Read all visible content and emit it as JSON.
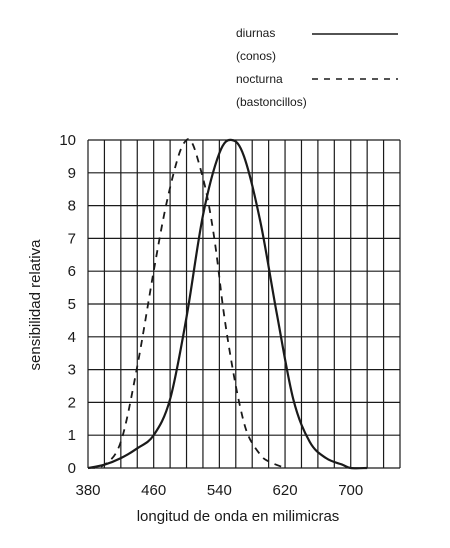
{
  "chart_data": {
    "type": "line",
    "title": "",
    "xlabel": "longitud de onda en milimicras",
    "ylabel": "sensibilidad relativa",
    "xlim": [
      380,
      760
    ],
    "ylim": [
      0,
      10
    ],
    "x_ticks": [
      380,
      460,
      540,
      620,
      700
    ],
    "y_ticks": [
      0,
      1,
      2,
      3,
      4,
      5,
      6,
      7,
      8,
      9,
      10
    ],
    "grid": true,
    "legend_position": "top-right",
    "legend": [
      {
        "line1": "diurnas",
        "line2": "(conos)",
        "style": "solid"
      },
      {
        "line1": "nocturna",
        "line2": "(bastoncillos)",
        "style": "dashed"
      }
    ],
    "series": [
      {
        "name": "diurnas (conos)",
        "style": "solid",
        "x": [
          380,
          400,
          420,
          440,
          460,
          480,
          500,
          520,
          540,
          555,
          570,
          590,
          610,
          630,
          650,
          670,
          690,
          700,
          720
        ],
        "y": [
          0,
          0.1,
          0.3,
          0.6,
          1.0,
          2.1,
          4.6,
          7.7,
          9.6,
          10.0,
          9.5,
          7.5,
          4.7,
          2.1,
          0.8,
          0.3,
          0.1,
          0.0,
          0.0
        ]
      },
      {
        "name": "nocturna (bastoncillos)",
        "style": "dashed",
        "x": [
          380,
          400,
          420,
          440,
          460,
          475,
          490,
          500,
          507,
          515,
          525,
          535,
          545,
          555,
          565,
          575,
          590,
          600,
          620
        ],
        "y": [
          0,
          0.1,
          0.8,
          3.1,
          6.0,
          8.0,
          9.5,
          10.0,
          9.9,
          9.3,
          8.3,
          6.8,
          4.8,
          3.2,
          1.9,
          1.0,
          0.4,
          0.2,
          0.0
        ]
      }
    ],
    "colors": {
      "line": "#1a1a1a",
      "grid": "#1a1a1a",
      "background": "#ffffff"
    }
  }
}
